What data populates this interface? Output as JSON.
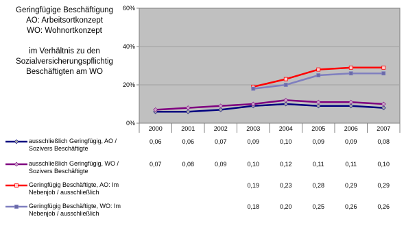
{
  "title_block": {
    "line1": "Geringfügige Beschäftigung",
    "line2": "AO: Arbeitsortkonzept",
    "line3": "WO: Wohnortkonzept",
    "line4": "im Verhältnis zu den",
    "line5": "Sozialversicherungspflichtig",
    "line6": "Beschäftigten am WO"
  },
  "chart_data": {
    "type": "line",
    "title": "Geringfügige Beschäftigung AO: Arbeitsortkonzept WO: Wohnortkonzept im Verhältnis zu den Sozialversicherungspflichtig Beschäftigten am WO",
    "x": [
      "2000",
      "2001",
      "2002",
      "2003",
      "2004",
      "2005",
      "2006",
      "2007"
    ],
    "ylim": [
      0,
      0.6
    ],
    "y_ticks": [
      0,
      0.2,
      0.4,
      0.6
    ],
    "y_tick_labels": [
      "0%",
      "20%",
      "40%",
      "60%"
    ],
    "grid": true,
    "legend": "data-table",
    "series": [
      {
        "name": "ausschließlich Geringfügig, AO / Sozivers Beschäftigte",
        "color": "#00007f",
        "marker_color": "#a8a8a8",
        "marker": "diamond",
        "values": [
          0.06,
          0.06,
          0.07,
          0.09,
          0.1,
          0.09,
          0.09,
          0.08
        ],
        "labels": [
          "0,06",
          "0,06",
          "0,07",
          "0,09",
          "0,10",
          "0,09",
          "0,09",
          "0,08"
        ]
      },
      {
        "name": "ausschließlich Geringfügig, WO / Sozivers Beschäftigte",
        "color": "#7f007f",
        "marker_color": "#c8a8c8",
        "marker": "diamond",
        "values": [
          0.07,
          0.08,
          0.09,
          0.1,
          0.12,
          0.11,
          0.11,
          0.1
        ],
        "labels": [
          "0,07",
          "0,08",
          "0,09",
          "0,10",
          "0,12",
          "0,11",
          "0,11",
          "0,10"
        ]
      },
      {
        "name": "Geringfügig Beschäftigte, AO: Im Nebenjob / ausschließlich",
        "color": "#ff0000",
        "marker_color": "#ffd0d0",
        "marker": "square",
        "values": [
          null,
          null,
          null,
          0.19,
          0.23,
          0.28,
          0.29,
          0.29
        ],
        "labels": [
          "",
          "",
          "",
          "0,19",
          "0,23",
          "0,28",
          "0,29",
          "0,29"
        ]
      },
      {
        "name": "Geringfügig Beschäftigte, WO: Im Nebenjob / ausschließlich",
        "color": "#7f7fbf",
        "marker_color": "#6a6aa8",
        "marker": "square",
        "values": [
          null,
          null,
          null,
          0.18,
          0.2,
          0.25,
          0.26,
          0.26
        ],
        "labels": [
          "",
          "",
          "",
          "0,18",
          "0,20",
          "0,25",
          "0,26",
          "0,26"
        ]
      }
    ]
  }
}
